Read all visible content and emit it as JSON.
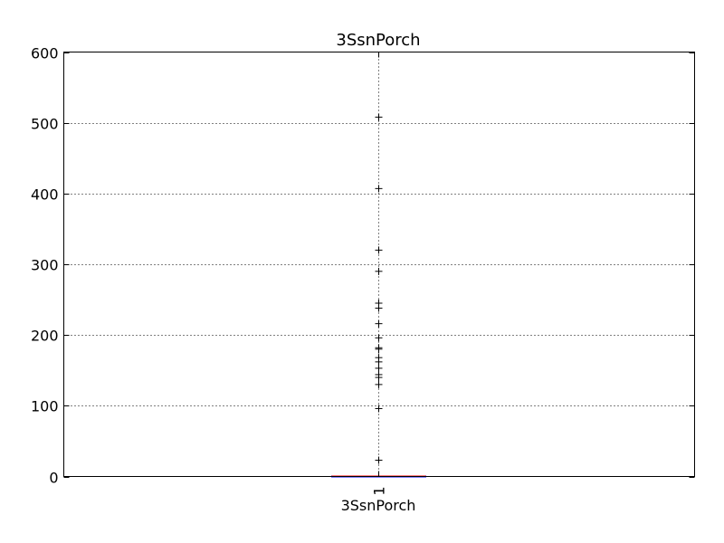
{
  "chart_data": {
    "type": "box",
    "title": "3SsnPorch",
    "xlabel": "3SsnPorch",
    "ylabel": "",
    "ylim": [
      0,
      600
    ],
    "yticks": [
      "0",
      "100",
      "200",
      "300",
      "400",
      "500",
      "600"
    ],
    "xtick_labels": [
      "1"
    ],
    "grid": true,
    "series": [
      {
        "min": 0,
        "q1": 0,
        "median": 0,
        "q3": 0,
        "max": 0,
        "outliers": [
          23,
          96,
          130,
          140,
          144,
          153,
          162,
          168,
          180,
          182,
          196,
          216,
          238,
          245,
          290,
          320,
          407,
          508
        ]
      }
    ],
    "colors": {
      "box": "#0000ff",
      "median": "#ff0000",
      "outlier": "#000000",
      "grid": "#000000"
    }
  }
}
